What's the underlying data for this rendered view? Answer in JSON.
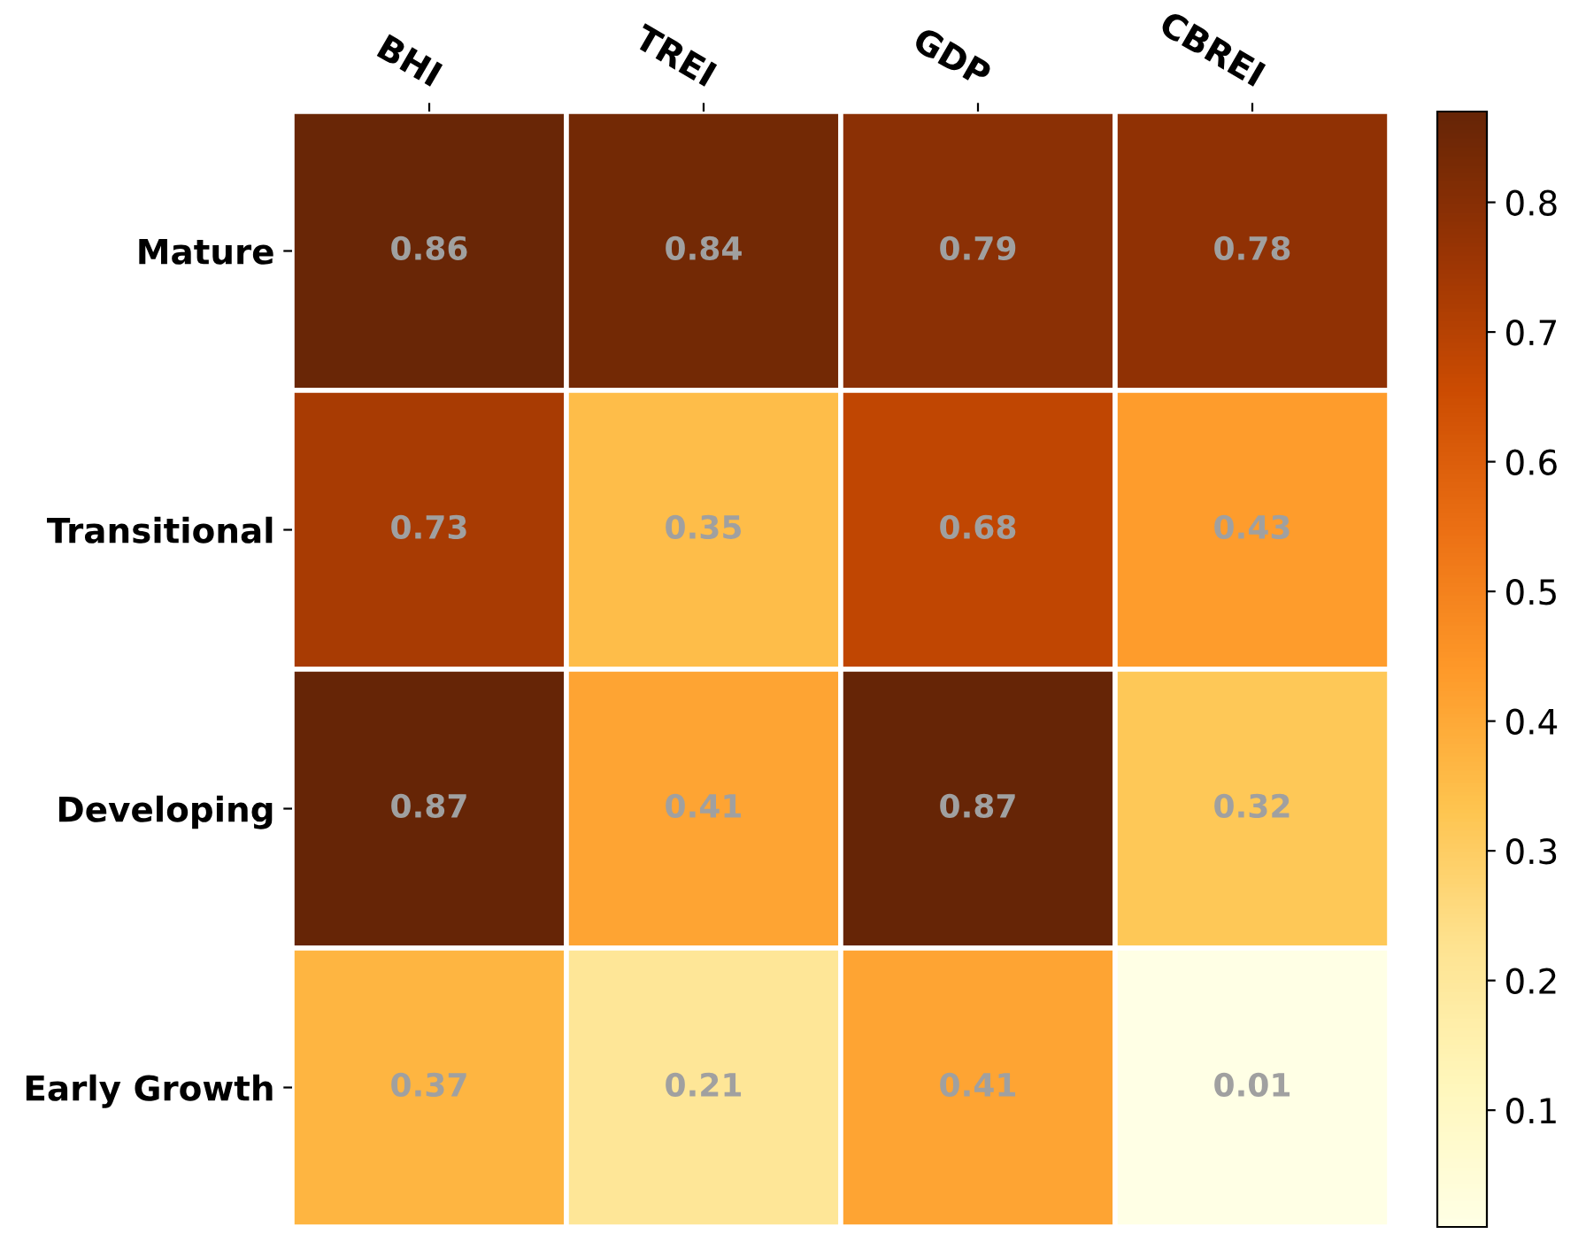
{
  "chart_data": {
    "type": "heatmap",
    "categories": [
      "BHI",
      "TREI",
      "GDP",
      "CBREI"
    ],
    "y_categories": [
      "Mature",
      "Transitional",
      "Developing",
      "Early Growth"
    ],
    "cells": [
      [
        0.86,
        0.84,
        0.79,
        0.78
      ],
      [
        0.73,
        0.35,
        0.68,
        0.43
      ],
      [
        0.87,
        0.41,
        0.87,
        0.32
      ],
      [
        0.37,
        0.21,
        0.41,
        0.01
      ]
    ],
    "clim": [
      0.01,
      0.87
    ],
    "cticks": [
      0.1,
      0.2,
      0.3,
      0.4,
      0.5,
      0.6,
      0.7,
      0.8
    ],
    "data_labels": true
  }
}
